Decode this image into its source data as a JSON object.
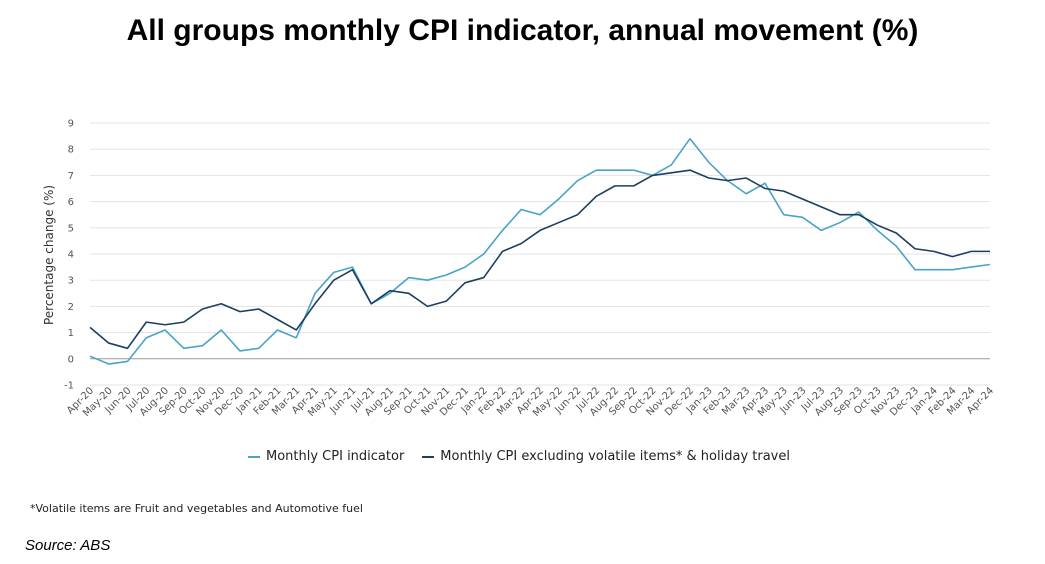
{
  "colors": {
    "series1": "#4aa3c8",
    "series2": "#1d3f5e",
    "grid": "#e3e3e3",
    "zero": "#9a9a9a"
  },
  "chart_data": {
    "type": "line",
    "title": "All groups monthly CPI indicator, annual movement (%)",
    "ylabel": "Percentage change (%)",
    "xlabel": "",
    "ylim": [
      -1,
      9
    ],
    "yticks": [
      -1,
      0,
      1,
      2,
      3,
      4,
      5,
      6,
      7,
      8,
      9
    ],
    "grid": true,
    "legend_position": "bottom",
    "categories": [
      "Apr-20",
      "May-20",
      "Jun-20",
      "Jul-20",
      "Aug-20",
      "Sep-20",
      "Oct-20",
      "Nov-20",
      "Dec-20",
      "Jan-21",
      "Feb-21",
      "Mar-21",
      "Apr-21",
      "May-21",
      "Jun-21",
      "Jul-21",
      "Aug-21",
      "Sep-21",
      "Oct-21",
      "Nov-21",
      "Dec-21",
      "Jan-22",
      "Feb-22",
      "Mar-22",
      "Apr-22",
      "May-22",
      "Jun-22",
      "Jul-22",
      "Aug-22",
      "Sep-22",
      "Oct-22",
      "Nov-22",
      "Dec-22",
      "Jan-23",
      "Feb-23",
      "Mar-23",
      "Apr-23",
      "May-23",
      "Jun-23",
      "Jul-23",
      "Aug-23",
      "Sep-23",
      "Oct-23",
      "Nov-23",
      "Dec-23",
      "Jan-24",
      "Feb-24",
      "Mar-24",
      "Apr-24"
    ],
    "series": [
      {
        "name": "Monthly CPI indicator",
        "values": [
          0.1,
          -0.2,
          -0.1,
          0.8,
          1.1,
          0.4,
          0.5,
          1.1,
          0.3,
          0.4,
          1.1,
          0.8,
          2.5,
          3.3,
          3.5,
          2.1,
          2.5,
          3.1,
          3.0,
          3.2,
          3.5,
          4.0,
          4.9,
          5.7,
          5.5,
          6.1,
          6.8,
          7.2,
          7.2,
          7.2,
          7.0,
          7.4,
          8.4,
          7.5,
          6.8,
          6.3,
          6.7,
          5.5,
          5.4,
          4.9,
          5.2,
          5.6,
          4.9,
          4.3,
          3.4,
          3.4,
          3.4,
          3.5,
          3.6
        ]
      },
      {
        "name": "Monthly CPI excluding volatile items* & holiday travel",
        "values": [
          1.2,
          0.6,
          0.4,
          1.4,
          1.3,
          1.4,
          1.9,
          2.1,
          1.8,
          1.9,
          1.5,
          1.1,
          2.1,
          3.0,
          3.4,
          2.1,
          2.6,
          2.5,
          2.0,
          2.2,
          2.9,
          3.1,
          4.1,
          4.4,
          4.9,
          5.2,
          5.5,
          6.2,
          6.6,
          6.6,
          7.0,
          7.1,
          7.2,
          6.9,
          6.8,
          6.9,
          6.5,
          6.4,
          6.1,
          5.8,
          5.5,
          5.5,
          5.1,
          4.8,
          4.2,
          4.1,
          3.9,
          4.1,
          4.1
        ]
      }
    ]
  },
  "footnote": "*Volatile items are Fruit and vegetables and Automotive fuel",
  "source": "Source: ABS"
}
